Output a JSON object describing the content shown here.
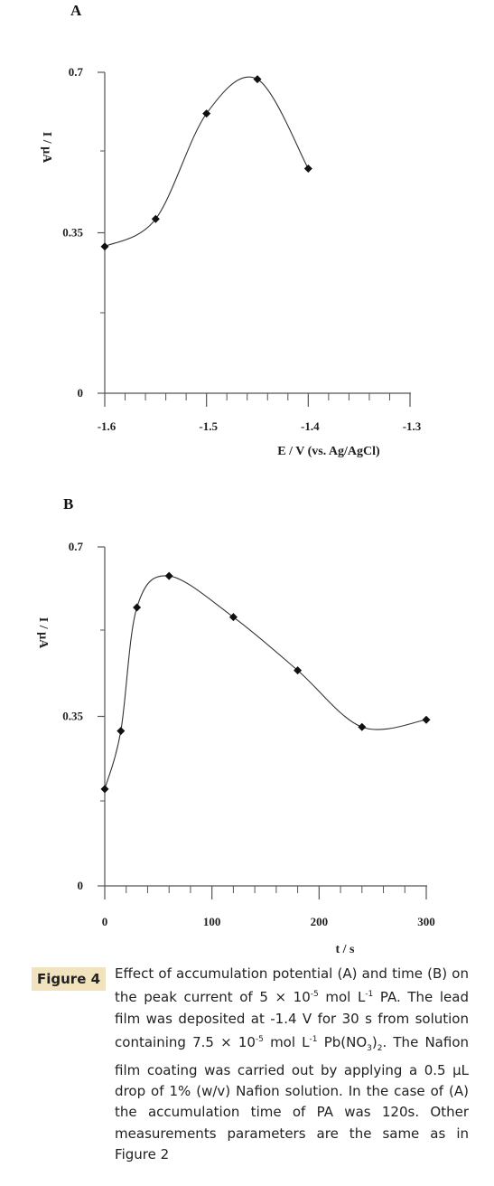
{
  "chart_data": [
    {
      "panel": "A",
      "type": "line",
      "xlabel": "E / V (vs. Ag/AgCl)",
      "ylabel": "I / µA",
      "xlim": [
        -1.6,
        -1.3
      ],
      "ylim": [
        0,
        0.7
      ],
      "x_ticks": [
        "-1.6",
        "-1.5",
        "-1.4",
        "-1.3"
      ],
      "y_ticks": [
        "0",
        "0.35",
        "0.7"
      ],
      "points": [
        {
          "x": -1.6,
          "y": 0.32
        },
        {
          "x": -1.55,
          "y": 0.38
        },
        {
          "x": -1.5,
          "y": 0.61
        },
        {
          "x": -1.45,
          "y": 0.685
        },
        {
          "x": -1.4,
          "y": 0.49
        }
      ],
      "grid": false,
      "marker": "diamond",
      "line_color": "#333333",
      "marker_color": "#111111"
    },
    {
      "panel": "B",
      "type": "line",
      "xlabel": "t / s",
      "ylabel": "I / µA",
      "xlim": [
        0,
        300
      ],
      "ylim": [
        0,
        0.7
      ],
      "x_ticks": [
        "0",
        "100",
        "200",
        "300"
      ],
      "y_ticks": [
        "0",
        "0.35",
        "0.7"
      ],
      "points": [
        {
          "x": 0,
          "y": 0.2
        },
        {
          "x": 15,
          "y": 0.32
        },
        {
          "x": 30,
          "y": 0.575
        },
        {
          "x": 60,
          "y": 0.64
        },
        {
          "x": 120,
          "y": 0.555
        },
        {
          "x": 180,
          "y": 0.445
        },
        {
          "x": 240,
          "y": 0.328
        },
        {
          "x": 300,
          "y": 0.343
        }
      ],
      "grid": false,
      "marker": "diamond",
      "line_color": "#333333",
      "marker_color": "#111111"
    }
  ],
  "caption": {
    "label": "Figure 4",
    "text_html": "Effect of accumulation potential (A) and time (B) on the peak current of 5 × 10<sup>-5</sup> mol L<sup>-1</sup> PA. The lead film was deposited at -1.4 V for 30 s from solution containing 7.5 × 10<sup>-5</sup> mol L<sup>-1</sup> Pb(NO<sub>3</sub>)<sub>2</sub>. The Nafion film coating was carried out by applying a 0.5 µL drop of 1% (w/v) Nafion solution. In the case of (A) the accumulation time of PA was 120s. Other measurements parameters are the same as in Figure 2"
  }
}
